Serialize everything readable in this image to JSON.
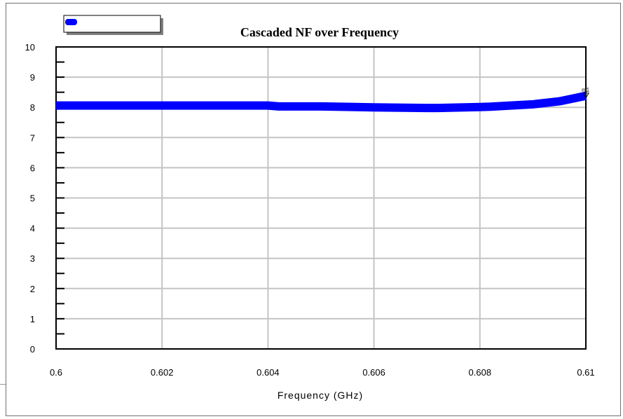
{
  "chart_data": {
    "type": "line",
    "title": "Cascaded NF over Frequency",
    "xlabel": "Frequency (GHz)",
    "ylabel": "",
    "xlim": [
      0.6,
      0.61
    ],
    "ylim": [
      0,
      10
    ],
    "xticks": [
      "0.6",
      "0.602",
      "0.604",
      "0.606",
      "0.608",
      "0.61"
    ],
    "yticks": [
      "0",
      "1",
      "2",
      "3",
      "4",
      "5",
      "6",
      "7",
      "8",
      "9",
      "10"
    ],
    "grid": true,
    "legend_position": "top-left",
    "series": [
      {
        "color": "#0000ff",
        "x": [
          0.6,
          0.601,
          0.602,
          0.603,
          0.604,
          0.6042,
          0.605,
          0.606,
          0.607,
          0.6072,
          0.608,
          0.6082,
          0.609,
          0.6095,
          0.61
        ],
        "values": [
          8.06,
          8.06,
          8.06,
          8.06,
          8.06,
          8.03,
          8.03,
          8.0,
          7.98,
          7.98,
          8.01,
          8.02,
          8.1,
          8.2,
          8.38
        ]
      }
    ],
    "marker_label": "m1"
  }
}
